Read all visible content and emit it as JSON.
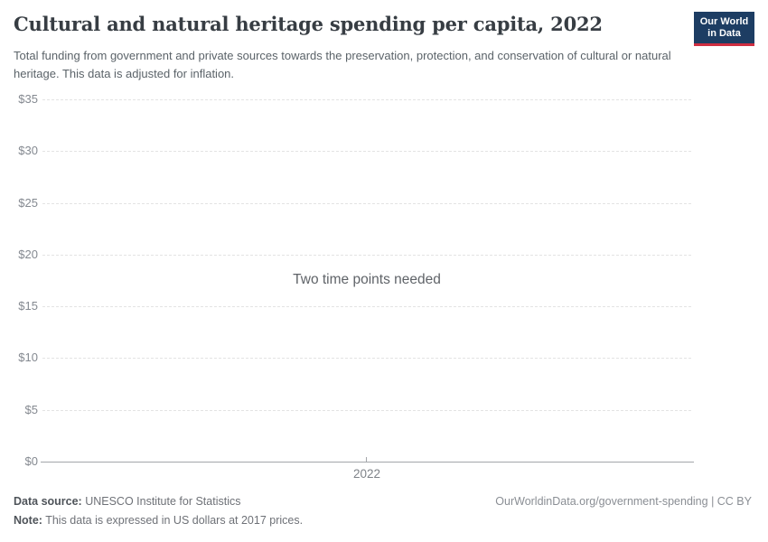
{
  "header": {
    "title": "Cultural and natural heritage spending per capita, 2022",
    "subtitle": "Total funding from government and private sources towards the preservation, protection, and conservation of cultural or natural heritage. This data is adjusted for inflation.",
    "logo": {
      "line1": "Our World",
      "line2": "in Data",
      "bg_color": "#1d3d63",
      "accent_color": "#cf2e41"
    }
  },
  "chart": {
    "message": "Two time points needed",
    "y_ticks": [
      "$35",
      "$30",
      "$25",
      "$20",
      "$15",
      "$10",
      "$5",
      "$0"
    ],
    "x_tick": "2022"
  },
  "chart_data": {
    "type": "line",
    "title": "Cultural and natural heritage spending per capita, 2022",
    "x": [
      "2022"
    ],
    "xtick_labels": [
      "2022"
    ],
    "series": [],
    "empty_state_message": "Two time points needed",
    "ylim": [
      0,
      35
    ],
    "yticks": [
      0,
      5,
      10,
      15,
      20,
      25,
      30,
      35
    ],
    "ytick_labels": [
      "$0",
      "$5",
      "$10",
      "$15",
      "$20",
      "$25",
      "$30",
      "$35"
    ],
    "ytick_prefix": "$",
    "grid": true,
    "grid_style": "horizontal dashed",
    "legend_position": "none"
  },
  "footer": {
    "source_label": "Data source:",
    "source_value": " UNESCO Institute for Statistics",
    "note_label": "Note:",
    "note_value": " This data is expressed in US dollars at 2017 prices.",
    "link": "OurWorldinData.org/government-spending | CC BY"
  },
  "colors": {
    "title_text": "#373d43",
    "subtitle_text": "#5b6369",
    "tick_text": "#848990",
    "gridline": "#e3e3e3",
    "axis_line": "#a3a6aa",
    "logo_bg": "#1d3d63",
    "logo_accent": "#cf2e41"
  }
}
